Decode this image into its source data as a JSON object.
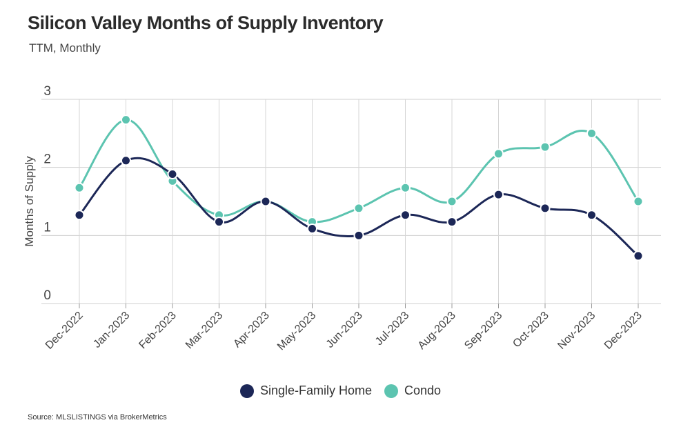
{
  "header": {
    "title": "Silicon Valley Months of Supply Inventory",
    "subtitle": "TTM, Monthly"
  },
  "footer": {
    "source": "Source:  MLSLISTINGS via BrokerMetrics"
  },
  "chart_data": {
    "type": "line",
    "title": "Silicon Valley Months of Supply Inventory",
    "subtitle": "TTM, Monthly",
    "xlabel": "",
    "ylabel": "Months of Supply",
    "ylim": [
      0,
      3
    ],
    "yticks": [
      "0",
      "1",
      "2",
      "3"
    ],
    "grid": true,
    "legend_position": "bottom",
    "categories": [
      "Dec-2022",
      "Jan-2023",
      "Feb-2023",
      "Mar-2023",
      "Apr-2023",
      "May-2023",
      "Jun-2023",
      "Jul-2023",
      "Aug-2023",
      "Sep-2023",
      "Oct-2023",
      "Nov-2023",
      "Dec-2023"
    ],
    "series": [
      {
        "name": "Single-Family Home",
        "color": "#1c2757",
        "values": [
          1.3,
          2.1,
          1.9,
          1.2,
          1.5,
          1.1,
          1.0,
          1.3,
          1.2,
          1.6,
          1.4,
          1.3,
          0.7
        ]
      },
      {
        "name": "Condo",
        "color": "#5cc4b0",
        "values": [
          1.7,
          2.7,
          1.8,
          1.3,
          1.5,
          1.2,
          1.4,
          1.7,
          1.5,
          2.2,
          2.3,
          2.5,
          1.5
        ]
      }
    ]
  }
}
